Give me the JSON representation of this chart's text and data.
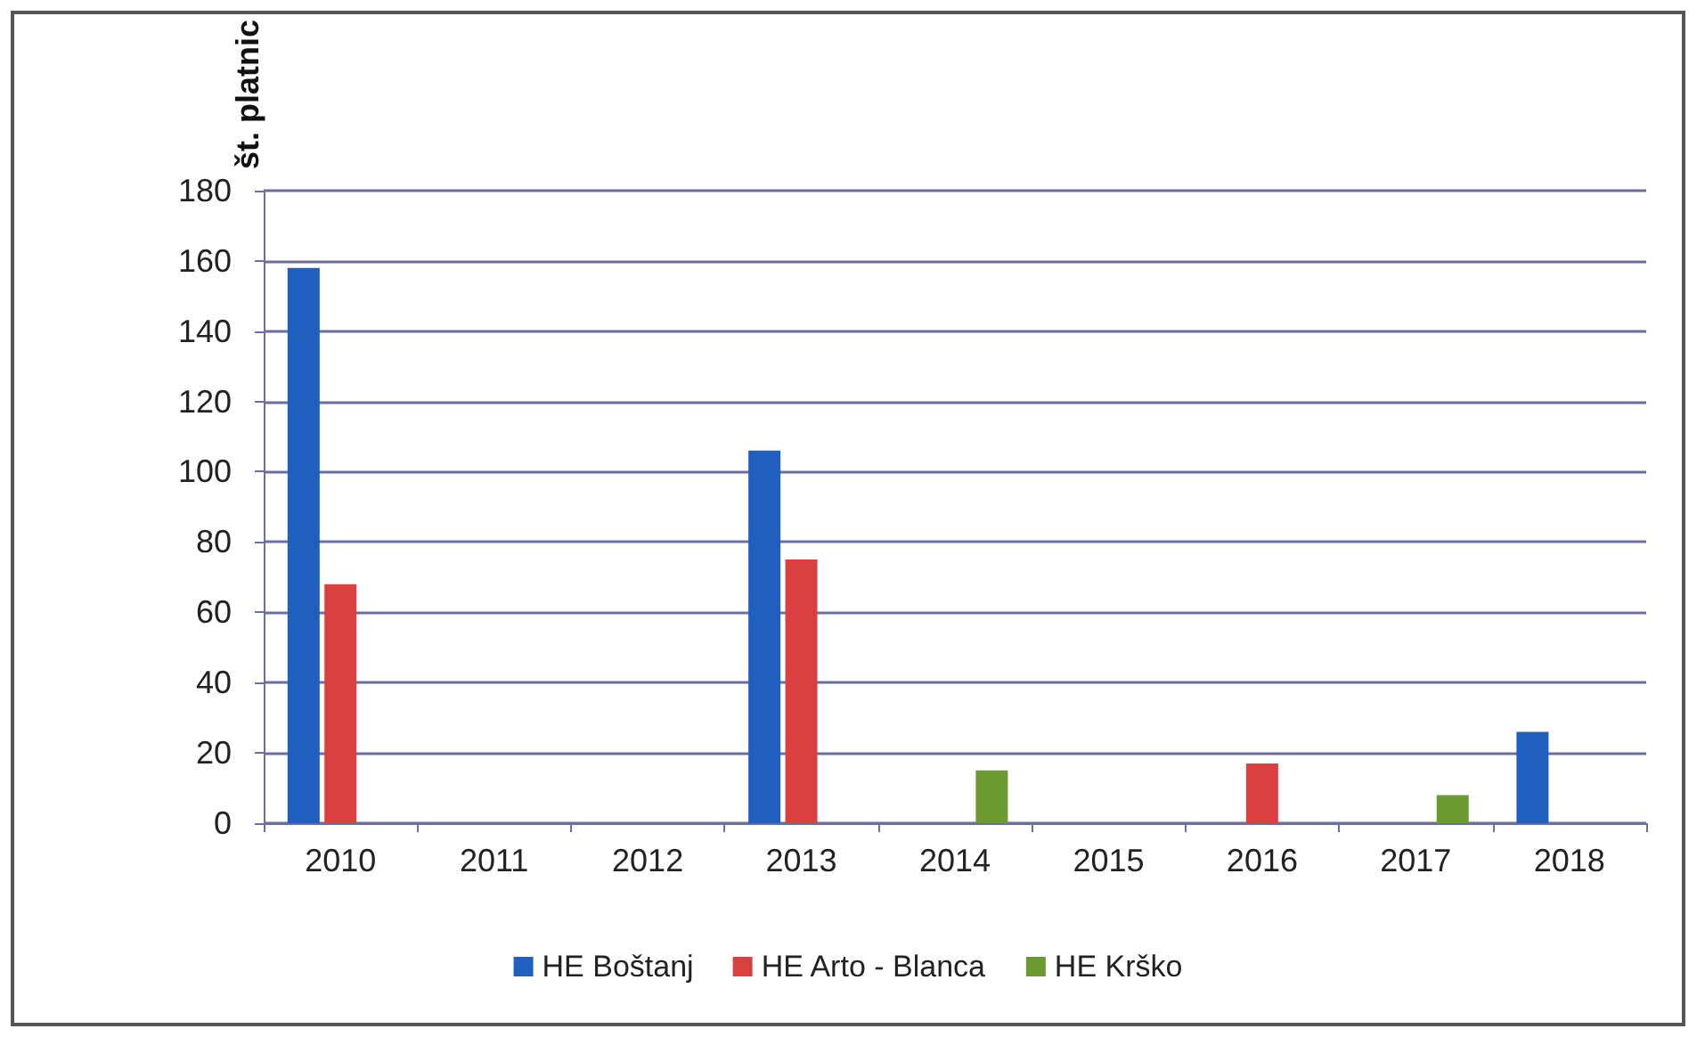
{
  "chart_data": {
    "type": "bar",
    "ylabel": "št. platnic",
    "categories": [
      "2010",
      "2011",
      "2012",
      "2013",
      "2014",
      "2015",
      "2016",
      "2017",
      "2018"
    ],
    "series": [
      {
        "name": "HE Boštanj",
        "color": "#1f5fbf",
        "values": [
          158,
          null,
          null,
          106,
          null,
          null,
          null,
          null,
          26
        ]
      },
      {
        "name": "HE Arto - Blanca",
        "color": "#d9403f",
        "values": [
          68,
          null,
          null,
          75,
          null,
          null,
          17,
          null,
          null
        ]
      },
      {
        "name": "HE Krško",
        "color": "#6a9a30",
        "values": [
          null,
          null,
          null,
          null,
          15,
          null,
          null,
          8,
          null
        ]
      }
    ],
    "ylim": [
      0,
      180
    ],
    "yticks": [
      0,
      20,
      40,
      60,
      80,
      100,
      120,
      140,
      160,
      180
    ],
    "grid": "y",
    "legend": "bottom"
  }
}
